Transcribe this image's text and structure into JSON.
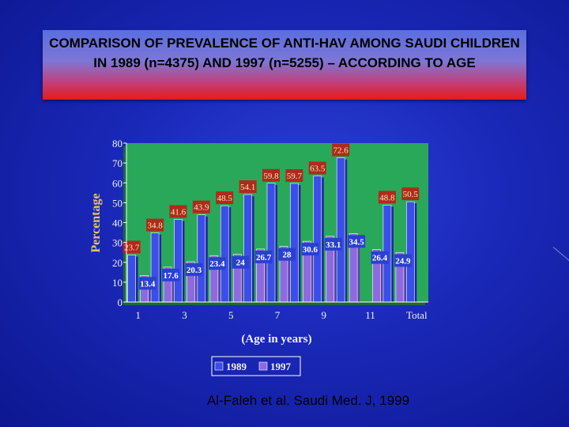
{
  "slide": {
    "title": "COMPARISON OF PREVALENCE OF ANTI-HAV AMONG SAUDI CHILDREN IN 1989 (n=4375) AND 1997 (n=5255) – ACCORDING TO AGE",
    "source": "Al-Faleh et al. Saudi Med. J, 1999"
  },
  "chart_data": {
    "type": "bar",
    "title": "",
    "xlabel": "(Age in years)",
    "ylabel": "Percentage",
    "ylim": [
      0,
      80
    ],
    "yticks": [
      0,
      10,
      20,
      30,
      40,
      50,
      60,
      70,
      80
    ],
    "categories": [
      "1",
      "2",
      "3",
      "4",
      "5",
      "6",
      "7",
      "8",
      "9",
      "10",
      "11",
      "12",
      "Total"
    ],
    "xtick_labels": [
      "1",
      "3",
      "5",
      "7",
      "9",
      "11",
      "Total"
    ],
    "series": [
      {
        "name": "1989",
        "color": "#3a4ee8",
        "values": [
          23.7,
          34.8,
          41.6,
          43.9,
          48.5,
          54.1,
          59.8,
          59.7,
          63.5,
          72.6,
          null,
          48.8,
          50.5
        ]
      },
      {
        "name": "1997",
        "color": "#8e6ae0",
        "values": [
          13.4,
          17.6,
          20.3,
          23.4,
          24,
          26.7,
          28,
          30.6,
          33.1,
          34.5,
          26.4,
          24.9,
          null
        ]
      }
    ],
    "data_labels": {
      "1989": [
        "23.7",
        "34.8",
        "41.6",
        "43.9",
        "48.5",
        "54.1",
        "59.8",
        "59.7",
        "63.5",
        "72.6",
        "",
        "48.8",
        "50.5"
      ],
      "1997": [
        "13.4",
        "17.6",
        "20.3",
        "23.4",
        "24",
        "26.7",
        "28",
        "30.6",
        "33.1",
        "34.5",
        "26.4",
        "24.9",
        ""
      ]
    },
    "legend": [
      "1989",
      "1997"
    ],
    "legend_position": "bottom",
    "plot_background": "#2aa85a",
    "grid": false
  }
}
